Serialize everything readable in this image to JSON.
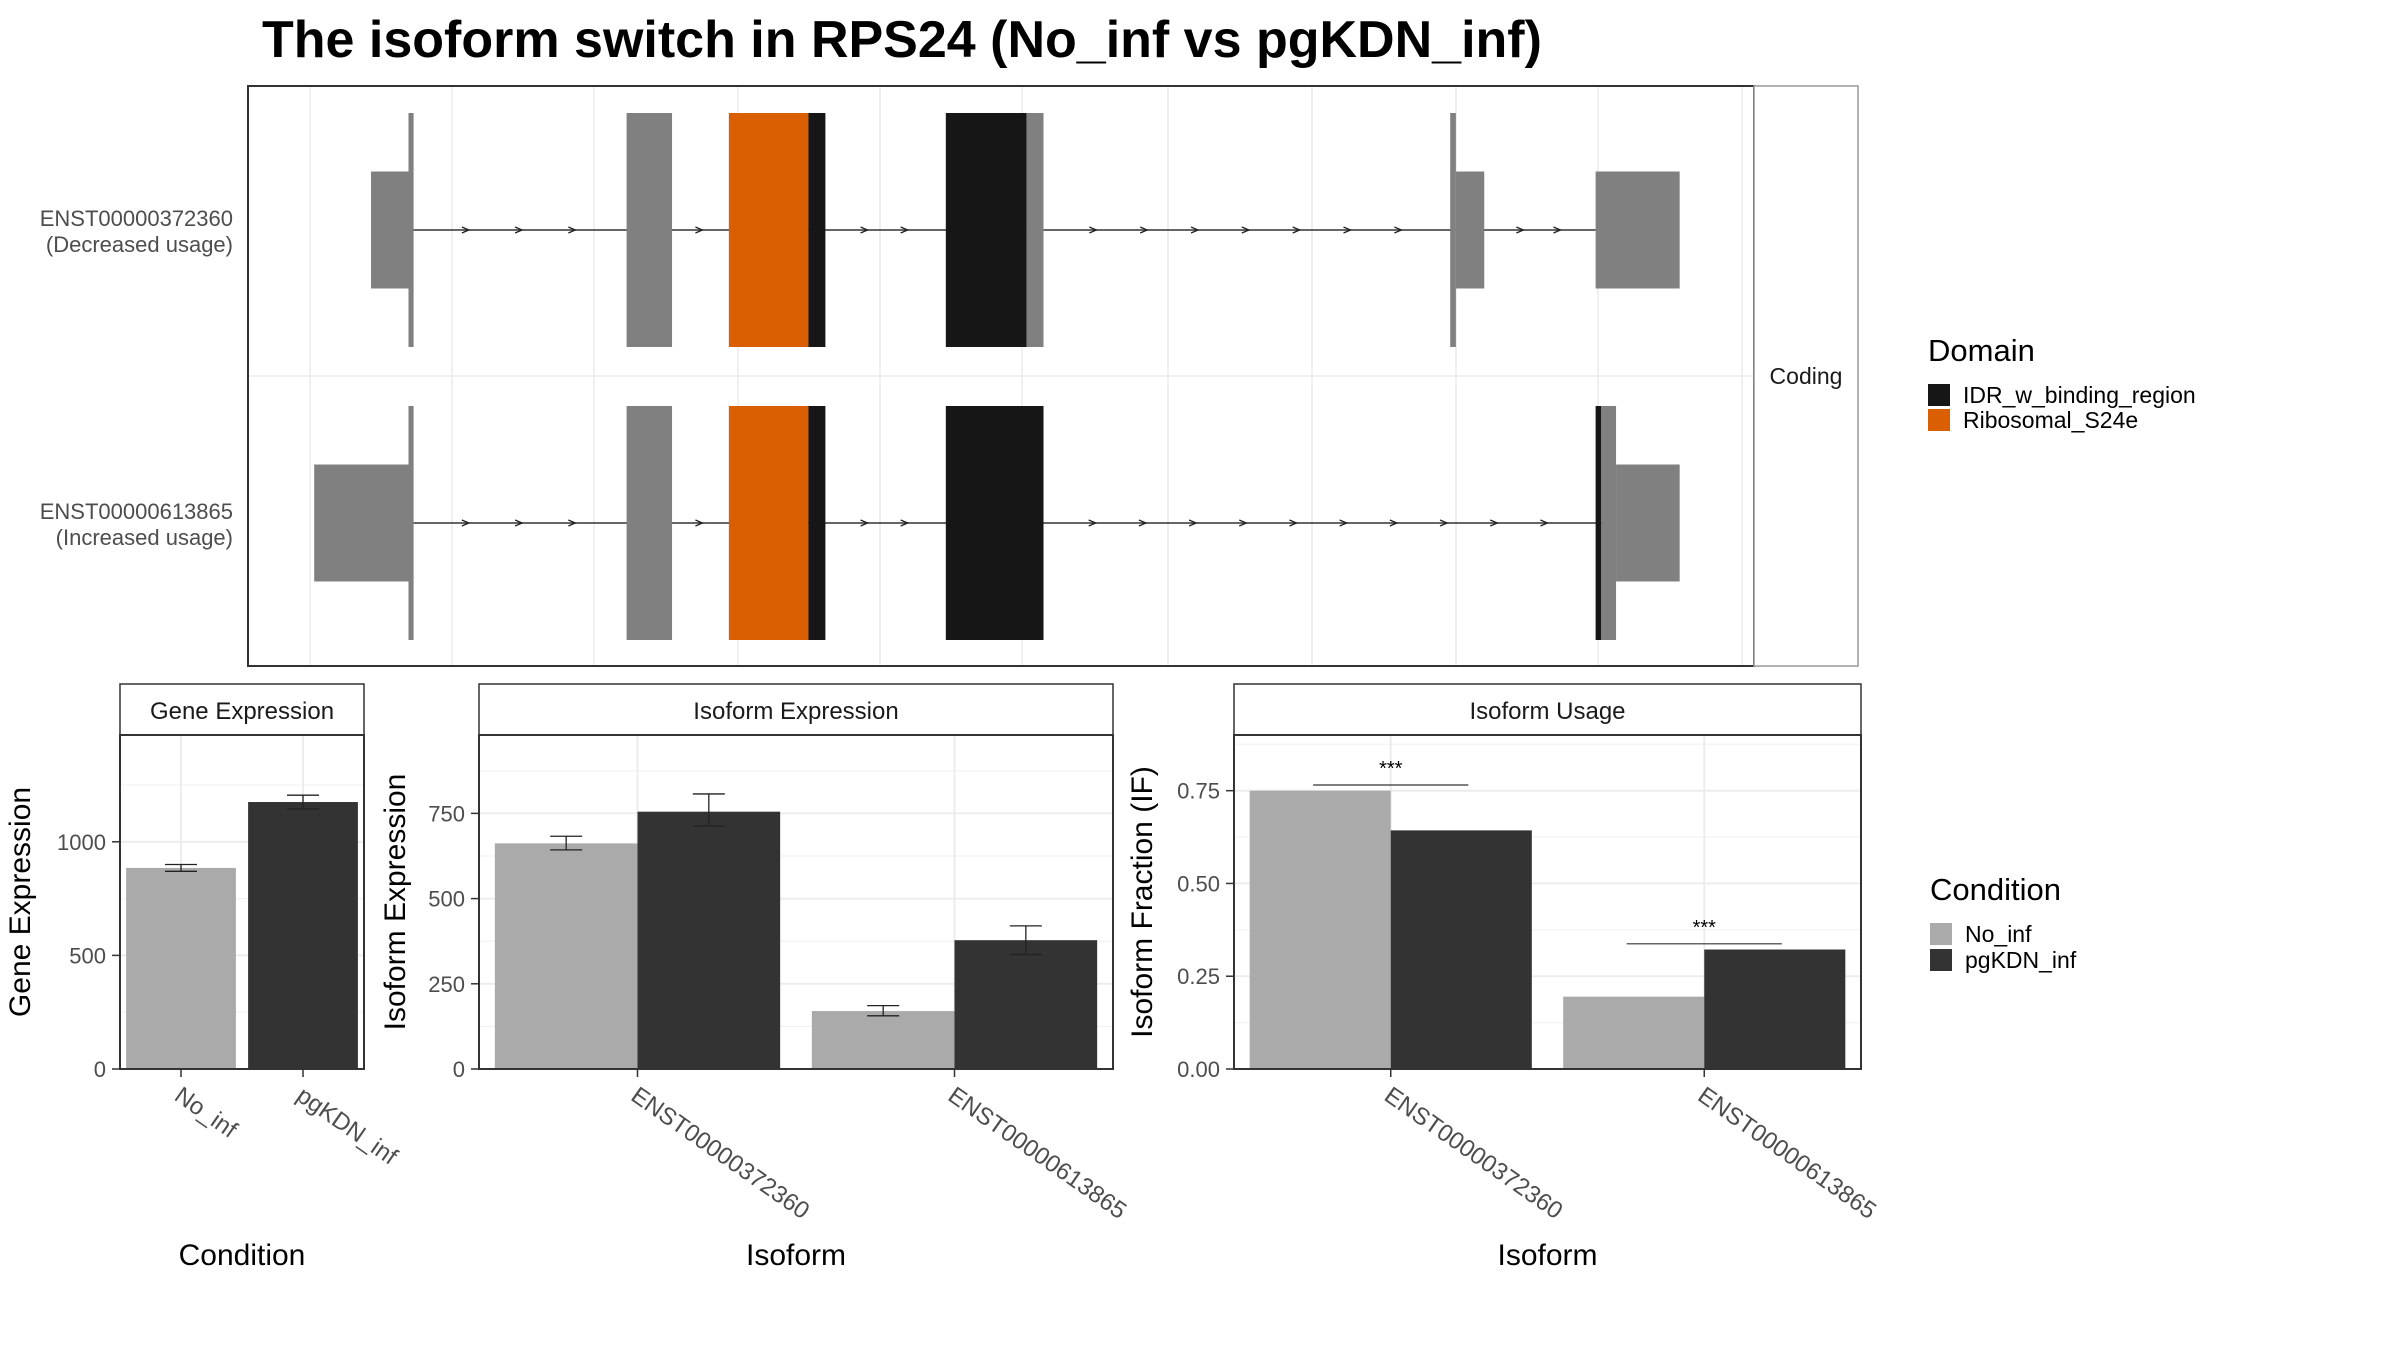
{
  "title": "The isoform switch in RPS24 (No_inf vs pgKDN_inf)",
  "colors": {
    "no_inf": "#AAAAAA",
    "pgkdn_inf": "#333333",
    "idr": "#161616",
    "ribosomal": "#D95F02",
    "utr": "#808080",
    "grid": "#EBEBEB",
    "panel_border": "#333333",
    "strip_border": "#9a9a9a"
  },
  "structure": {
    "facet_label": "Coding",
    "legend": {
      "title": "Domain",
      "items": [
        {
          "label": "IDR_w_binding_region",
          "color": "#161616"
        },
        {
          "label": "Ribosomal_S24e",
          "color": "#D95F02"
        }
      ]
    },
    "transcripts": [
      {
        "id": "ENST00000372360",
        "usage_label": "(Decreased usage)",
        "segments": [
          {
            "start": 0.0,
            "end": 0.033,
            "kind": "utr"
          },
          {
            "start": 0.033,
            "end": 0.0375,
            "kind": "cds"
          },
          {
            "start": 0.225,
            "end": 0.265,
            "kind": "cds"
          },
          {
            "start": 0.315,
            "end": 0.385,
            "kind": "ribosomal"
          },
          {
            "start": 0.385,
            "end": 0.4,
            "kind": "idr"
          },
          {
            "start": 0.506,
            "end": 0.577,
            "kind": "idr"
          },
          {
            "start": 0.577,
            "end": 0.592,
            "kind": "cds"
          },
          {
            "start": 0.95,
            "end": 0.955,
            "kind": "cds"
          },
          {
            "start": 0.955,
            "end": 0.98,
            "kind": "utr"
          },
          {
            "start": 1.078,
            "end": 1.152,
            "kind": "utr"
          }
        ]
      },
      {
        "id": "ENST00000613865",
        "usage_label": "(Increased usage)",
        "segments": [
          {
            "start": -0.05,
            "end": 0.033,
            "kind": "utr"
          },
          {
            "start": 0.033,
            "end": 0.0375,
            "kind": "cds"
          },
          {
            "start": 0.225,
            "end": 0.265,
            "kind": "cds"
          },
          {
            "start": 0.315,
            "end": 0.385,
            "kind": "ribosomal"
          },
          {
            "start": 0.385,
            "end": 0.4,
            "kind": "idr"
          },
          {
            "start": 0.506,
            "end": 0.592,
            "kind": "idr"
          },
          {
            "start": 1.078,
            "end": 1.083,
            "kind": "idr"
          },
          {
            "start": 1.083,
            "end": 1.096,
            "kind": "cds"
          },
          {
            "start": 1.096,
            "end": 1.152,
            "kind": "utr"
          }
        ]
      }
    ]
  },
  "chart_data": [
    {
      "type": "bar",
      "title": "Gene Expression",
      "xlabel": "Condition",
      "ylabel": "Gene Expression",
      "categories": [
        "No_inf",
        "pgKDN_inf"
      ],
      "values": [
        885,
        1175
      ],
      "errors": [
        [
          870,
          900
        ],
        [
          1145,
          1205
        ]
      ],
      "yticks": [
        0,
        500,
        1000
      ],
      "ylim": [
        0,
        1470
      ]
    },
    {
      "type": "bar",
      "title": "Isoform Expression",
      "xlabel": "Isoform",
      "ylabel": "Isoform Expression",
      "categories": [
        "ENST00000372360",
        "ENST00000613865"
      ],
      "series": [
        {
          "name": "No_inf",
          "values": [
            662,
            170
          ],
          "errors": [
            [
              643,
              683
            ],
            [
              156,
              186
            ]
          ]
        },
        {
          "name": "pgKDN_inf",
          "values": [
            755,
            378
          ],
          "errors": [
            [
              713,
              807
            ],
            [
              336,
              420
            ]
          ]
        }
      ],
      "yticks": [
        0,
        250,
        500,
        750
      ],
      "ylim": [
        0,
        980
      ]
    },
    {
      "type": "bar",
      "title": "Isoform Usage",
      "xlabel": "Isoform",
      "ylabel": "Isoform Fraction (IF)",
      "categories": [
        "ENST00000372360",
        "ENST00000613865"
      ],
      "series": [
        {
          "name": "No_inf",
          "values": [
            0.75,
            0.195
          ]
        },
        {
          "name": "pgKDN_inf",
          "values": [
            0.643,
            0.322
          ]
        }
      ],
      "significance": [
        "***",
        "***"
      ],
      "yticks": [
        "0.00",
        "0.25",
        "0.50",
        "0.75"
      ],
      "ylim": [
        0,
        0.9
      ]
    }
  ],
  "condition_legend": {
    "title": "Condition",
    "items": [
      {
        "label": "No_inf",
        "color": "#AAAAAA"
      },
      {
        "label": "pgKDN_inf",
        "color": "#333333"
      }
    ]
  }
}
